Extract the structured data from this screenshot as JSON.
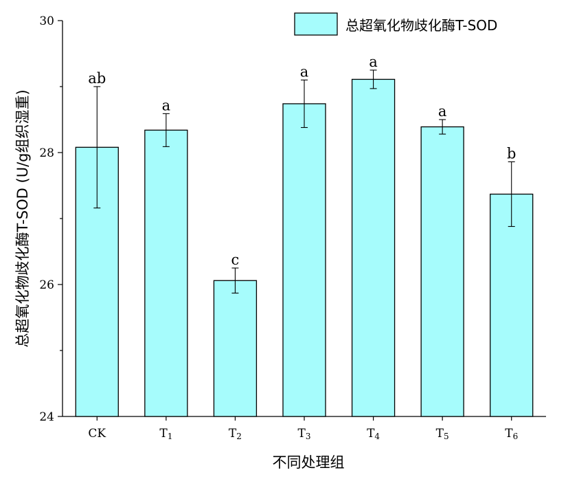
{
  "chart_data": {
    "type": "bar",
    "xlabel": "不同处理组",
    "ylabel": "总超氧化物歧化酶T-SOD (U/g组织湿重)",
    "ylim": [
      24,
      30
    ],
    "yticks": [
      "24",
      "26",
      "28",
      "30"
    ],
    "categories": [
      {
        "main": "CK",
        "sub": ""
      },
      {
        "main": "T",
        "sub": "1"
      },
      {
        "main": "T",
        "sub": "2"
      },
      {
        "main": "T",
        "sub": "3"
      },
      {
        "main": "T",
        "sub": "4"
      },
      {
        "main": "T",
        "sub": "5"
      },
      {
        "main": "T",
        "sub": "6"
      }
    ],
    "series": [
      {
        "name": "总超氧化物歧化酶T-SOD",
        "values": [
          28.08,
          28.34,
          26.06,
          28.74,
          29.11,
          28.39,
          27.37
        ],
        "errors": [
          0.92,
          0.25,
          0.19,
          0.36,
          0.14,
          0.11,
          0.49
        ],
        "labels": [
          "ab",
          "a",
          "c",
          "a",
          "a",
          "a",
          "b"
        ]
      }
    ],
    "legend_position": "top-right",
    "grid": false
  },
  "colors": {
    "bar_fill": "#a6fcfc",
    "outline": "#000000"
  }
}
